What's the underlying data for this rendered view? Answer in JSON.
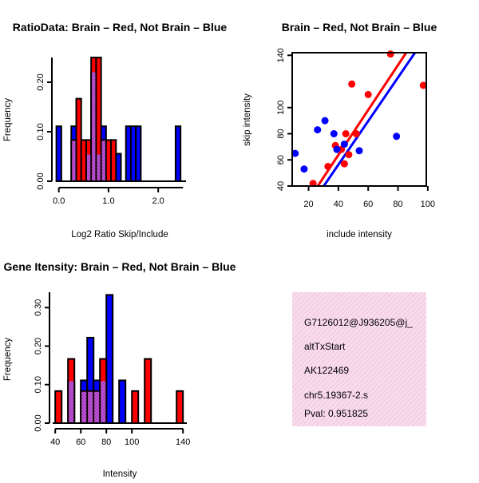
{
  "chart_data": [
    {
      "id": "hist_ratio",
      "type": "histogram",
      "title": "RatioData: Brain – Red, Not Brain – Blue",
      "xlabel": "Log2 Ratio Skip/Include",
      "ylabel": "Frequency",
      "x_ticks": [
        0.0,
        1.0,
        2.0
      ],
      "x_tick_labels": [
        "0.0",
        "1.0",
        "2.0"
      ],
      "y_ticks": [
        0.0,
        0.1,
        0.2
      ],
      "y_tick_labels": [
        "0.00",
        "0.10",
        "0.20"
      ],
      "xlim": [
        -0.06,
        2.56
      ],
      "ylim": [
        0,
        0.25
      ],
      "series": [
        {
          "name": "Not Brain",
          "color": "#0000ff",
          "bins": [
            [
              -0.05,
              0.05,
              0.111
            ],
            [
              0.25,
              0.35,
              0.111
            ],
            [
              0.55,
              0.65,
              0.0556
            ],
            [
              0.65,
              0.75,
              0.222
            ],
            [
              0.75,
              0.85,
              0.0556
            ],
            [
              0.85,
              0.95,
              0.111
            ],
            [
              1.15,
              1.25,
              0.0556
            ],
            [
              1.35,
              1.45,
              0.111
            ],
            [
              1.45,
              1.55,
              0.111
            ],
            [
              1.55,
              1.65,
              0.111
            ],
            [
              2.35,
              2.45,
              0.111
            ]
          ]
        },
        {
          "name": "Brain",
          "color": "#ff0000",
          "bins": [
            [
              0.25,
              0.35,
              0.0833
            ],
            [
              0.35,
              0.45,
              0.1667
            ],
            [
              0.45,
              0.55,
              0.0833
            ],
            [
              0.55,
              0.65,
              0.0833
            ],
            [
              0.65,
              0.75,
              0.25
            ],
            [
              0.75,
              0.85,
              0.25
            ],
            [
              0.85,
              0.95,
              0.0833
            ],
            [
              0.95,
              1.05,
              0.0833
            ],
            [
              1.05,
              1.15,
              0.0833
            ]
          ]
        }
      ],
      "overlap_color": "#a050c8"
    },
    {
      "id": "scatter_intensity",
      "type": "scatter",
      "title": "Brain – Red, Not Brain – Blue",
      "xlabel": "include intensity",
      "ylabel": "skip intensity",
      "x_ticks": [
        20,
        40,
        60,
        80,
        100
      ],
      "y_ticks": [
        40,
        60,
        80,
        100,
        140
      ],
      "xlim": [
        9,
        99
      ],
      "ylim": [
        40,
        142
      ],
      "series": [
        {
          "name": "Brain",
          "color": "#ff0000",
          "points": [
            [
              23,
              42
            ],
            [
              33,
              55
            ],
            [
              38,
              71
            ],
            [
              42,
              68
            ],
            [
              44,
              57
            ],
            [
              45,
              80
            ],
            [
              47,
              64
            ],
            [
              49,
              118
            ],
            [
              52,
              80
            ],
            [
              60,
              110
            ],
            [
              75,
              141
            ],
            [
              97,
              117
            ]
          ],
          "fit": [
            [
              25,
              38
            ],
            [
              89,
              148
            ]
          ]
        },
        {
          "name": "Not Brain",
          "color": "#0000ff",
          "points": [
            [
              11,
              65
            ],
            [
              17,
              53
            ],
            [
              26,
              83
            ],
            [
              31,
              90
            ],
            [
              37,
              80
            ],
            [
              39,
              68
            ],
            [
              44,
              72
            ],
            [
              54,
              67
            ],
            [
              79,
              78
            ]
          ],
          "fit": [
            [
              29,
              38
            ],
            [
              95,
              148
            ]
          ]
        }
      ]
    },
    {
      "id": "hist_intensity",
      "type": "histogram",
      "title": "Gene Itensity: Brain – Red, Not Brain – Blue",
      "xlabel": "Intensity",
      "ylabel": "Frequency",
      "x_ticks": [
        40,
        60,
        80,
        100,
        140
      ],
      "y_ticks": [
        0.0,
        0.1,
        0.2,
        0.3
      ],
      "y_tick_labels": [
        "0.00",
        "0.10",
        "0.20",
        "0.30"
      ],
      "xlim": [
        38,
        143
      ],
      "ylim": [
        0,
        0.34
      ],
      "series": [
        {
          "name": "Not Brain",
          "color": "#0000ff",
          "bins": [
            [
              50,
              55,
              0.111
            ],
            [
              60,
              65,
              0.111
            ],
            [
              65,
              70,
              0.222
            ],
            [
              70,
              75,
              0.111
            ],
            [
              75,
              80,
              0.111
            ],
            [
              80,
              85,
              0.333
            ],
            [
              85,
              90,
              0.0
            ],
            [
              90,
              95,
              0.111
            ],
            [
              95,
              100,
              0.0
            ],
            [
              100,
              105,
              0.0
            ]
          ]
        },
        {
          "name": "Brain",
          "color": "#ff0000",
          "bins": [
            [
              40,
              45,
              0.0833
            ],
            [
              50,
              55,
              0.1667
            ],
            [
              60,
              65,
              0.0833
            ],
            [
              65,
              70,
              0.0833
            ],
            [
              70,
              75,
              0.0833
            ],
            [
              75,
              80,
              0.1667
            ],
            [
              100,
              105,
              0.0833
            ],
            [
              110,
              115,
              0.1667
            ],
            [
              135,
              140,
              0.0833
            ]
          ]
        }
      ],
      "overlap_color": "#a050c8"
    }
  ],
  "info_box": {
    "line1": "G7126012@J936205@j_",
    "line2": "altTxStart",
    "line3": "AK122469",
    "line4": "chr5.19367-2.s",
    "pval": "Pval: 0.951825",
    "bg_color": "#f8dcec",
    "pval_color": "#990000"
  }
}
